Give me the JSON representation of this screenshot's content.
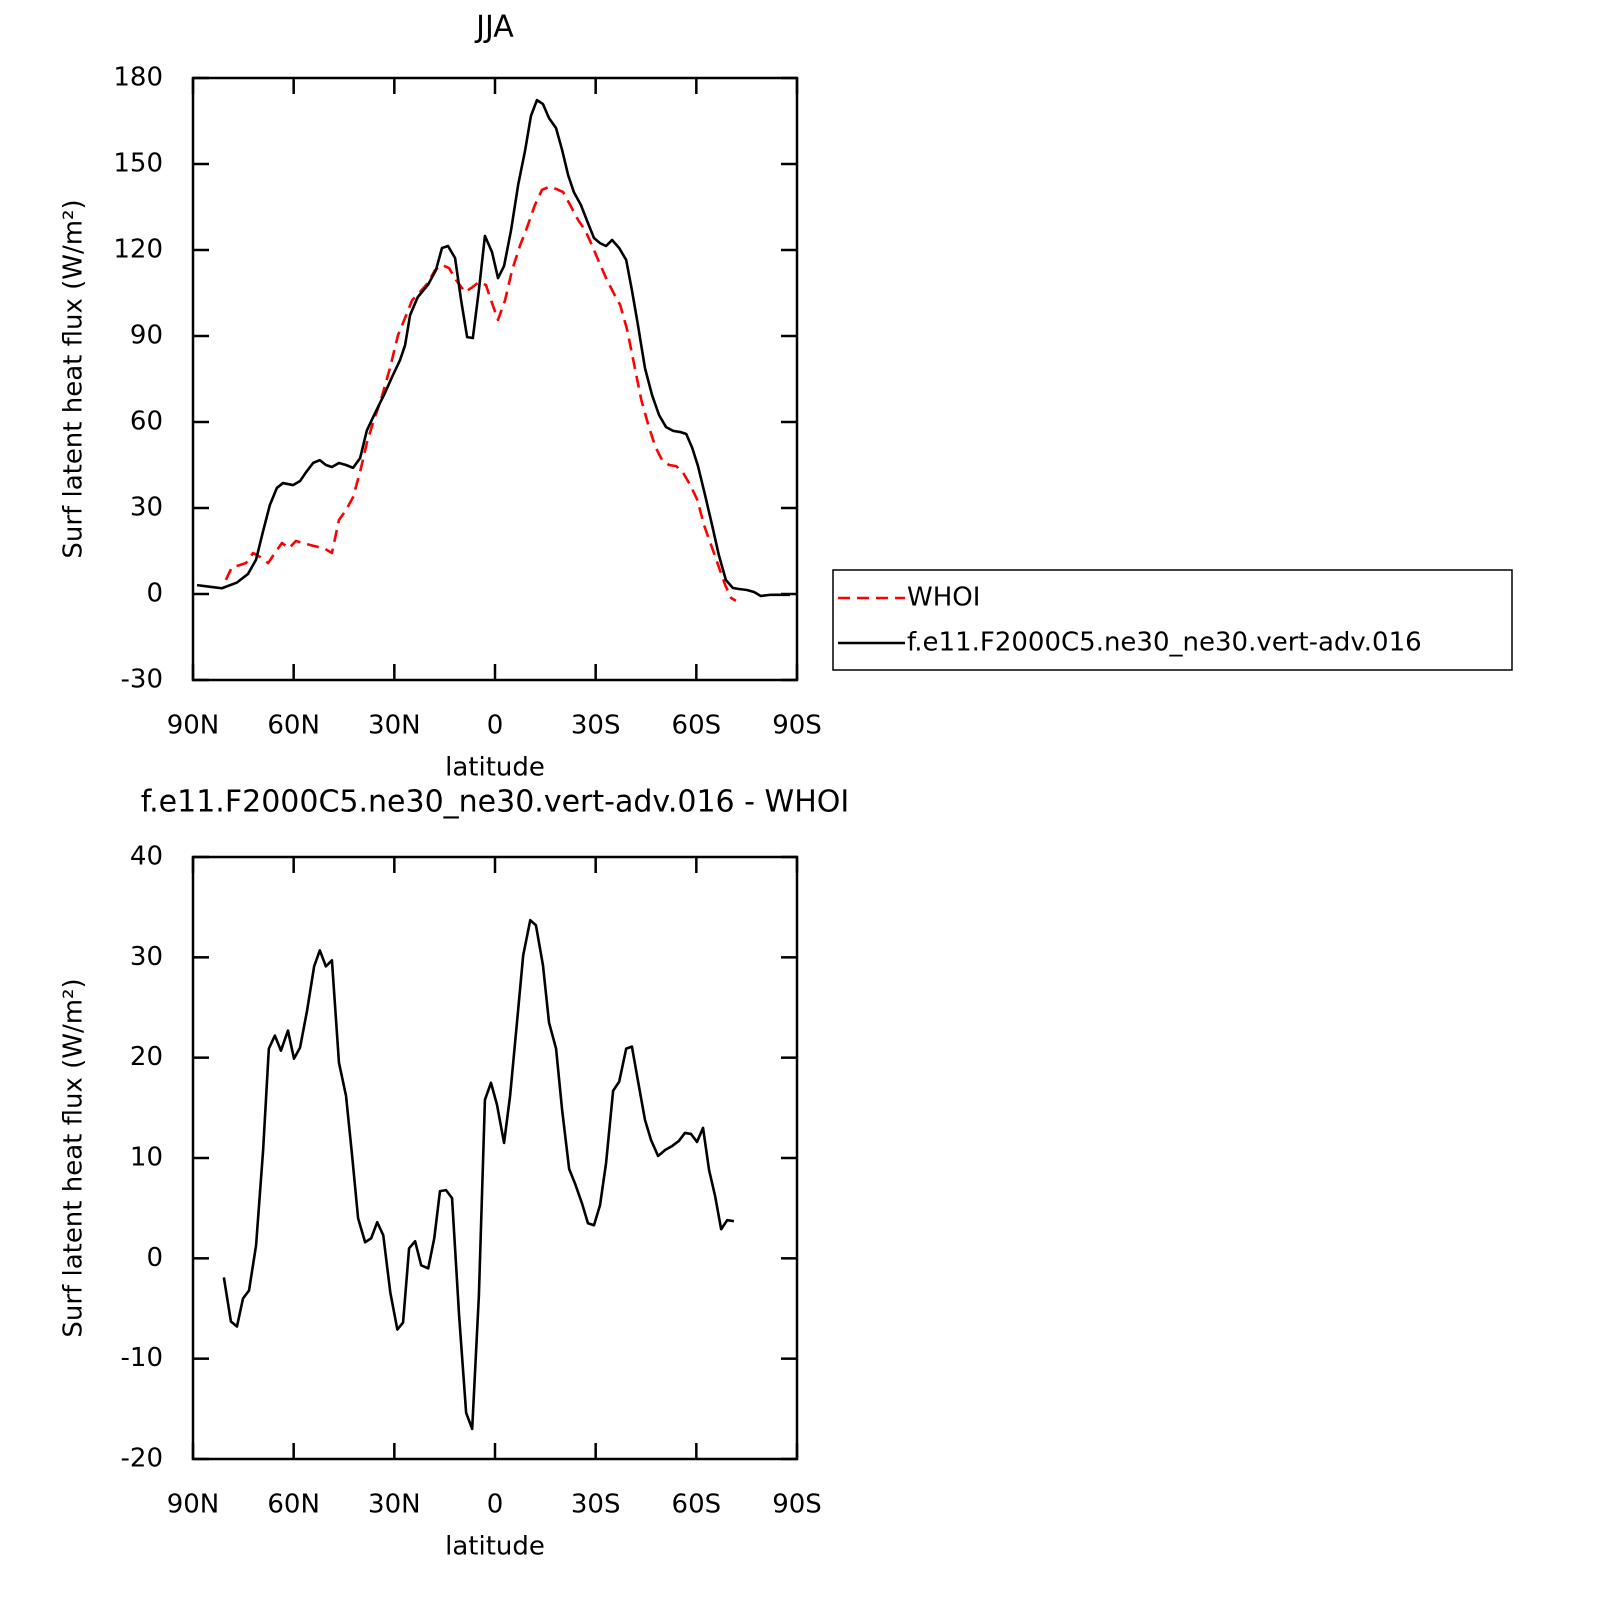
{
  "chart_data": [
    {
      "type": "line",
      "title": "JJA",
      "xlabel": "latitude",
      "ylabel": "Surf latent heat flux (W/m²)",
      "xlim": [
        90,
        -90
      ],
      "xticks": [
        {
          "value": 90,
          "label": "90N"
        },
        {
          "value": 60,
          "label": "60N"
        },
        {
          "value": 30,
          "label": "30N"
        },
        0,
        {
          "value": -30,
          "label": "30S"
        },
        {
          "value": -60,
          "label": "60S"
        },
        {
          "value": -90,
          "label": "90S"
        }
      ],
      "ylim": [
        -30,
        180
      ],
      "yticks": [
        -30,
        0,
        30,
        60,
        90,
        120,
        150,
        180
      ],
      "legend": "right",
      "series": [
        {
          "name": "WHOI",
          "color": "#ff0000",
          "linestyle": "dashed",
          "x": [
            80.2,
            78.4,
            76.3,
            74.2,
            72.1,
            70,
            67.6,
            65.6,
            63.5,
            61.4,
            59.3,
            57.2,
            55.1,
            52.7,
            50.6,
            48.6,
            46.5,
            44.4,
            42.3,
            40.2,
            38.2,
            36.1,
            34,
            31.3,
            28.9,
            26.8,
            24.7,
            22.4,
            20,
            17.9,
            15.8,
            13.7,
            11.6,
            8.9,
            6.8,
            4.8,
            2.7,
            1.2,
            -0.9,
            -3,
            -5.1,
            -7.5,
            -9.5,
            -11.9,
            -14,
            -16.1,
            -18.2,
            -20.3,
            -22.4,
            -24.8,
            -26.8,
            -28.9,
            -31,
            -33.1,
            -35.2,
            -37.3,
            -39.4,
            -41.5,
            -43.6,
            -45.7,
            -47.8,
            -49.8,
            -51.9,
            -54,
            -56.1,
            -58.2,
            -60.3,
            -62.3,
            -64.4,
            -66.5,
            -68.6,
            -70.4,
            -71.8
          ],
          "values": [
            4.9,
            9.4,
            10,
            10.8,
            14.3,
            12.9,
            10.8,
            14.3,
            17.8,
            16,
            18.5,
            17.8,
            17.1,
            16.4,
            15.7,
            14.3,
            25.8,
            29.3,
            33.8,
            42.6,
            52.7,
            60.7,
            67.7,
            78.8,
            90.3,
            96.3,
            102.5,
            105.3,
            108.5,
            113,
            114.8,
            113.7,
            109.5,
            105.3,
            107,
            108.8,
            107.8,
            102.5,
            95.6,
            102.5,
            113,
            121.7,
            127.7,
            135.7,
            141,
            142,
            141.3,
            140.2,
            135.7,
            130.4,
            127,
            121.7,
            115.8,
            110.2,
            105.3,
            100.8,
            92.1,
            79.9,
            67.7,
            58.9,
            51.3,
            46.7,
            45,
            44.6,
            42.2,
            38,
            32.8,
            24,
            17.1,
            10.1,
            3.1,
            -1.4,
            -2.4
          ]
        },
        {
          "name": "f.e11.F2000C5.ne30_ne30.vert-adv.016",
          "color": "#000000",
          "linestyle": "solid",
          "x": [
            88.8,
            84.9,
            81.4,
            76.9,
            73.6,
            71.2,
            69.1,
            67.1,
            65,
            63.2,
            60.2,
            58.1,
            56.3,
            54.2,
            52.2,
            50.4,
            48.6,
            46.5,
            44.4,
            42.3,
            40.2,
            38.2,
            35.8,
            33.1,
            30.4,
            28.3,
            26.8,
            25.3,
            23,
            20,
            17.6,
            15.8,
            14,
            11.9,
            10.1,
            8.3,
            6.6,
            4.8,
            3,
            0.9,
            -0.9,
            -2.7,
            -4.8,
            -6.9,
            -9,
            -10.7,
            -12.5,
            -14.3,
            -16.1,
            -18.2,
            -20,
            -21.8,
            -23.5,
            -25.6,
            -27.7,
            -29.5,
            -31.3,
            -33.1,
            -34.9,
            -37,
            -39.1,
            -40.8,
            -42.6,
            -44.7,
            -46.8,
            -48.9,
            -51,
            -53.1,
            -55.2,
            -57,
            -58.8,
            -60.5,
            -62.6,
            -64.7,
            -66.7,
            -68.8,
            -70.9,
            -73,
            -75.1,
            -77.2,
            -79.2,
            -81.9,
            -84.9,
            -87.9
          ],
          "values": [
            3.1,
            2.5,
            2,
            4,
            7,
            12,
            22,
            31,
            37,
            38.7,
            38,
            39.4,
            42.5,
            45.7,
            46.7,
            45,
            44.3,
            45.7,
            45,
            44,
            47.4,
            57,
            63,
            69.4,
            76.4,
            81.6,
            86.8,
            97.3,
            103.6,
            107.8,
            113,
            120.7,
            121.4,
            117.2,
            102.5,
            89.6,
            89.3,
            106,
            124.9,
            119.3,
            110.2,
            114.4,
            127,
            142.7,
            154.9,
            166.7,
            172.3,
            170.9,
            166,
            162.5,
            154.9,
            146.1,
            140.2,
            135.7,
            129.4,
            124.2,
            122.4,
            121.4,
            123.5,
            120.7,
            116.5,
            106,
            93.8,
            78.8,
            69.4,
            62.4,
            58.2,
            56.9,
            56.5,
            55.8,
            50.9,
            44.6,
            34.5,
            24,
            13.6,
            4.9,
            2.1,
            1.7,
            1.4,
            0.7,
            -0.7,
            -0.3,
            -0.3,
            -0.3
          ]
        }
      ]
    },
    {
      "type": "line",
      "title": "f.e11.F2000C5.ne30_ne30.vert-adv.016 - WHOI",
      "xlabel": "latitude",
      "ylabel": "Surf latent heat flux (W/m²)",
      "xlim": [
        90,
        -90
      ],
      "xticks": [
        {
          "value": 90,
          "label": "90N"
        },
        {
          "value": 60,
          "label": "60N"
        },
        {
          "value": 30,
          "label": "30N"
        },
        0,
        {
          "value": -30,
          "label": "30S"
        },
        {
          "value": -60,
          "label": "60S"
        },
        {
          "value": -90,
          "label": "90S"
        }
      ],
      "ylim": [
        -20,
        40
      ],
      "yticks": [
        -20,
        -10,
        0,
        10,
        20,
        30,
        40
      ],
      "color": "#000000",
      "x": [
        80.8,
        78.7,
        76.9,
        75.1,
        73.3,
        71.2,
        69.1,
        67.4,
        65.6,
        63.8,
        61.7,
        59.9,
        58.1,
        56,
        53.9,
        52.2,
        50.4,
        48.6,
        46.5,
        44.4,
        42.6,
        40.8,
        38.7,
        36.9,
        35.1,
        33.3,
        31.2,
        29.1,
        27.4,
        25.6,
        23.8,
        22,
        19.9,
        18.1,
        16.4,
        14.6,
        12.8,
        10.7,
        8.6,
        6.8,
        4.8,
        3,
        1.2,
        -0.6,
        -2.7,
        -4.5,
        -6.6,
        -8.4,
        -10.5,
        -12.2,
        -14.3,
        -16.1,
        -18.2,
        -20,
        -22.1,
        -23.8,
        -25.9,
        -27.7,
        -29.5,
        -31.3,
        -33.1,
        -35.2,
        -37,
        -39.1,
        -40.8,
        -42.6,
        -44.7,
        -46.5,
        -48.6,
        -50.7,
        -52.8,
        -54.8,
        -56.6,
        -58.4,
        -60.2,
        -62,
        -63.8,
        -65.6,
        -67.4,
        -69.2,
        -71.2
      ],
      "values": [
        -1.9,
        -6.3,
        -6.8,
        -4,
        -3.2,
        1.3,
        10.8,
        20.9,
        22.2,
        20.7,
        22.7,
        19.9,
        21,
        24.7,
        29.1,
        30.7,
        29.1,
        29.7,
        19.5,
        16.2,
        10.3,
        4,
        1.6,
        2,
        3.6,
        2.3,
        -3.4,
        -7.1,
        -6.4,
        1,
        1.7,
        -0.7,
        -1,
        2,
        6.7,
        6.8,
        6,
        -5.7,
        -15.4,
        -17,
        -3.7,
        15.8,
        17.5,
        15.3,
        11.5,
        16.2,
        23.7,
        30.2,
        33.7,
        33.2,
        29.2,
        23.5,
        20.9,
        14.8,
        8.9,
        7.5,
        5.5,
        3.5,
        3.3,
        5.3,
        9.5,
        16.7,
        17.6,
        20.9,
        21.1,
        17.7,
        13.8,
        11.8,
        10.2,
        10.8,
        11.2,
        11.7,
        12.5,
        12.4,
        11.6,
        13,
        8.8,
        6.2,
        2.9,
        3.8,
        3.7
      ]
    }
  ]
}
